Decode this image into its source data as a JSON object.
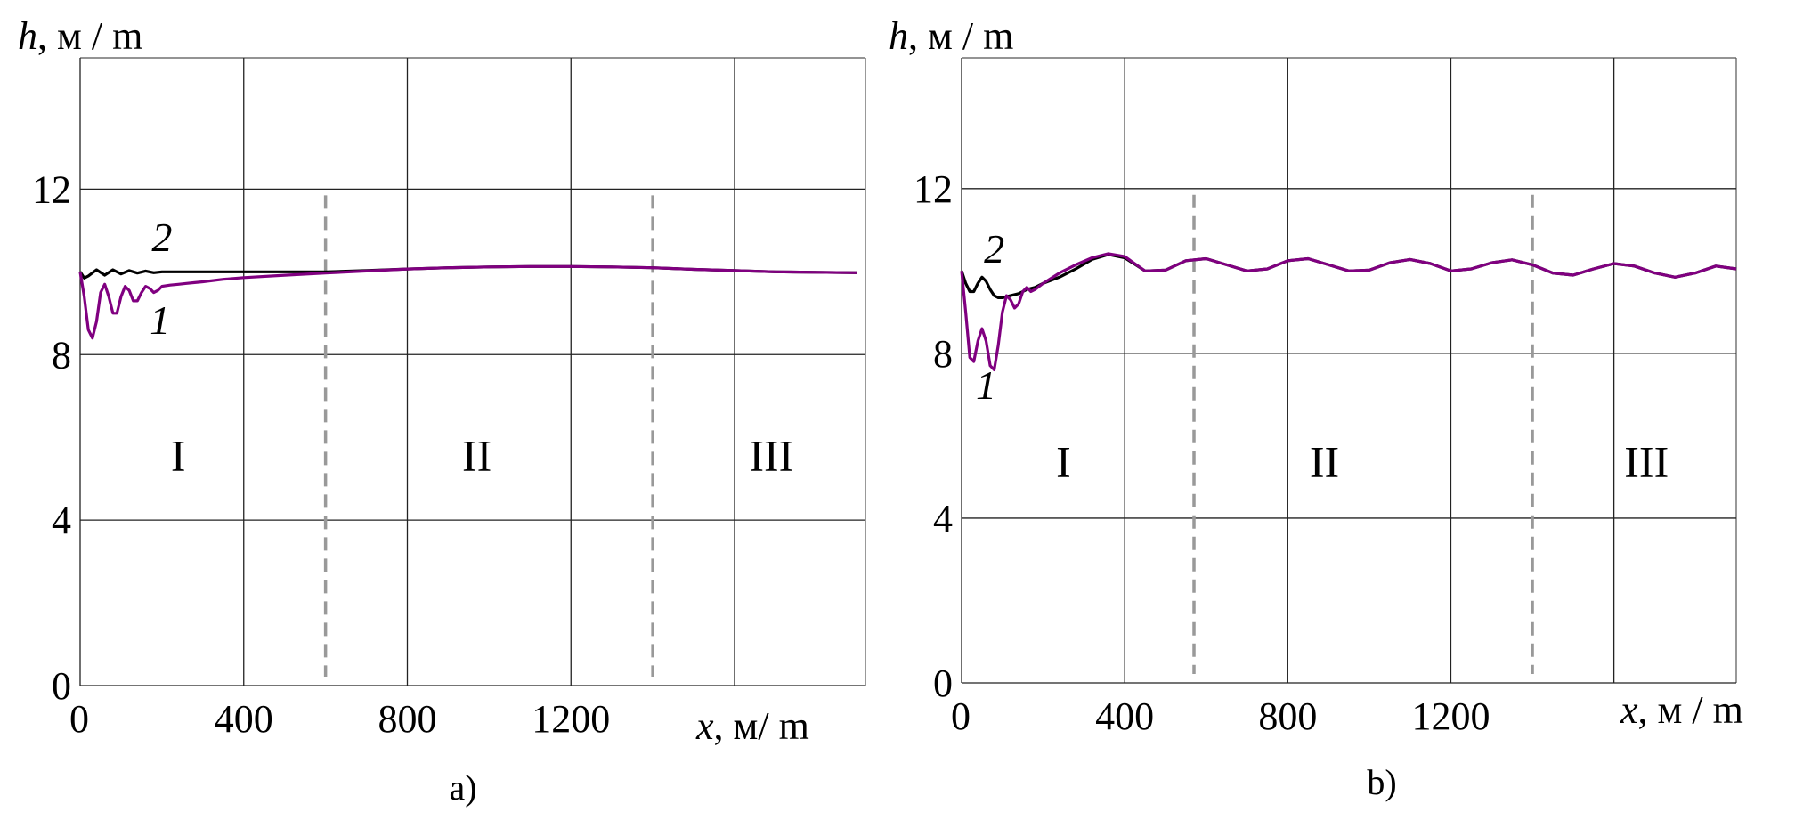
{
  "chart_data": [
    {
      "type": "line",
      "panel_label": "a)",
      "ylabel_var": "h",
      "ylabel_units": ", м / m",
      "xlabel_var": "x",
      "xlabel_units": ", м/ m",
      "xlim": [
        0,
        1920
      ],
      "ylim": [
        0,
        15
      ],
      "xticks": [
        0,
        400,
        800,
        1200
      ],
      "xtick_labels": [
        "0",
        "400",
        "800",
        "1200"
      ],
      "xgrid": [
        0,
        400,
        800,
        1200,
        1600
      ],
      "yticks": [
        0,
        4,
        8,
        12
      ],
      "ytick_labels": [
        "0",
        "4",
        "8",
        "12"
      ],
      "grid": true,
      "zone_boundaries": [
        600,
        1400
      ],
      "zones": [
        {
          "label": "I",
          "x": 240,
          "y": 5.2
        },
        {
          "label": "II",
          "x": 970,
          "y": 5.2
        },
        {
          "label": "III",
          "x": 1690,
          "y": 5.2
        }
      ],
      "series": [
        {
          "name": "2",
          "color": "#000000",
          "label_pos": {
            "x": 200,
            "y": 10.5
          },
          "x": [
            0,
            10,
            20,
            40,
            60,
            80,
            100,
            120,
            140,
            160,
            180,
            200,
            250,
            300,
            400,
            500,
            600,
            700,
            800,
            900,
            1000,
            1100,
            1200,
            1300,
            1400,
            1500,
            1600,
            1700,
            1800,
            1900
          ],
          "y": [
            10.0,
            9.85,
            9.9,
            10.05,
            9.92,
            10.05,
            9.95,
            10.03,
            9.97,
            10.02,
            9.98,
            10.0,
            10.0,
            10.0,
            10.0,
            10.0,
            10.0,
            10.03,
            10.07,
            10.1,
            10.12,
            10.13,
            10.13,
            10.12,
            10.1,
            10.06,
            10.03,
            10.0,
            9.99,
            9.98
          ]
        },
        {
          "name": "1",
          "color": "#800080",
          "label_pos": {
            "x": 195,
            "y": 8.5
          },
          "x": [
            0,
            10,
            20,
            30,
            40,
            50,
            60,
            70,
            80,
            90,
            100,
            110,
            120,
            130,
            140,
            150,
            160,
            170,
            180,
            190,
            200,
            220,
            240,
            260,
            280,
            300,
            350,
            400,
            500,
            600,
            700,
            800,
            900,
            1000,
            1100,
            1200,
            1300,
            1400,
            1500,
            1600,
            1700,
            1800,
            1900
          ],
          "y": [
            10.0,
            9.4,
            8.6,
            8.4,
            8.8,
            9.5,
            9.7,
            9.4,
            9.0,
            9.0,
            9.4,
            9.65,
            9.55,
            9.3,
            9.3,
            9.5,
            9.65,
            9.6,
            9.5,
            9.55,
            9.65,
            9.68,
            9.7,
            9.72,
            9.74,
            9.76,
            9.82,
            9.86,
            9.92,
            9.97,
            10.02,
            10.07,
            10.1,
            10.12,
            10.13,
            10.13,
            10.12,
            10.1,
            10.06,
            10.03,
            10.0,
            9.99,
            9.98
          ]
        }
      ]
    },
    {
      "type": "line",
      "panel_label": "b)",
      "ylabel_var": "h",
      "ylabel_units": ", м / m",
      "xlabel_var": "x",
      "xlabel_units": ", м / m",
      "xlim": [
        0,
        1900
      ],
      "ylim": [
        0,
        15
      ],
      "xticks": [
        0,
        400,
        800,
        1200
      ],
      "xtick_labels": [
        "0",
        "400",
        "800",
        "1200"
      ],
      "xgrid": [
        0,
        400,
        800,
        1200,
        1600
      ],
      "yticks": [
        0,
        4,
        8,
        12
      ],
      "ytick_labels": [
        "0",
        "4",
        "8",
        "12"
      ],
      "grid": true,
      "zone_boundaries": [
        570,
        1400
      ],
      "zones": [
        {
          "label": "I",
          "x": 250,
          "y": 5.0
        },
        {
          "label": "II",
          "x": 890,
          "y": 5.0
        },
        {
          "label": "III",
          "x": 1680,
          "y": 5.0
        }
      ],
      "series": [
        {
          "name": "2",
          "color": "#000000",
          "label_pos": {
            "x": 80,
            "y": 10.2
          },
          "x": [
            0,
            10,
            20,
            30,
            40,
            50,
            60,
            70,
            80,
            90,
            100,
            120,
            140,
            160,
            180,
            200,
            240,
            280,
            320,
            360,
            400,
            450,
            500,
            550,
            600,
            650,
            700,
            750,
            800,
            850,
            900,
            950,
            1000,
            1050,
            1100,
            1150,
            1200,
            1250,
            1300,
            1350,
            1400,
            1450,
            1500,
            1550,
            1600,
            1650,
            1700,
            1750,
            1800,
            1850,
            1900
          ],
          "y": [
            10.0,
            9.7,
            9.5,
            9.5,
            9.7,
            9.85,
            9.75,
            9.55,
            9.4,
            9.35,
            9.35,
            9.4,
            9.45,
            9.55,
            9.6,
            9.7,
            9.85,
            10.05,
            10.28,
            10.4,
            10.32,
            10.0,
            10.02,
            10.25,
            10.3,
            10.15,
            10.0,
            10.05,
            10.25,
            10.3,
            10.15,
            10.0,
            10.02,
            10.2,
            10.28,
            10.18,
            10.0,
            10.05,
            10.2,
            10.27,
            10.15,
            9.95,
            9.9,
            10.05,
            10.18,
            10.12,
            9.95,
            9.85,
            9.95,
            10.12,
            10.05
          ]
        },
        {
          "name": "1",
          "color": "#800080",
          "label_pos": {
            "x": 60,
            "y": 6.9
          },
          "x": [
            0,
            10,
            20,
            30,
            40,
            50,
            60,
            70,
            80,
            90,
            100,
            110,
            120,
            130,
            140,
            150,
            160,
            170,
            180,
            200,
            240,
            280,
            320,
            360,
            400,
            450,
            500,
            550,
            600,
            650,
            700,
            750,
            800,
            850,
            900,
            950,
            1000,
            1050,
            1100,
            1150,
            1200,
            1250,
            1300,
            1350,
            1400,
            1450,
            1500,
            1550,
            1600,
            1650,
            1700,
            1750,
            1800,
            1850,
            1900
          ],
          "y": [
            10.0,
            9.0,
            7.9,
            7.8,
            8.3,
            8.6,
            8.3,
            7.7,
            7.6,
            8.2,
            9.0,
            9.4,
            9.3,
            9.1,
            9.2,
            9.5,
            9.6,
            9.5,
            9.55,
            9.7,
            9.95,
            10.15,
            10.32,
            10.42,
            10.35,
            10.0,
            10.02,
            10.25,
            10.3,
            10.15,
            10.0,
            10.05,
            10.25,
            10.3,
            10.15,
            10.0,
            10.02,
            10.2,
            10.28,
            10.18,
            10.0,
            10.05,
            10.2,
            10.27,
            10.15,
            9.95,
            9.9,
            10.05,
            10.18,
            10.12,
            9.95,
            9.85,
            9.95,
            10.12,
            10.05
          ]
        }
      ]
    }
  ]
}
